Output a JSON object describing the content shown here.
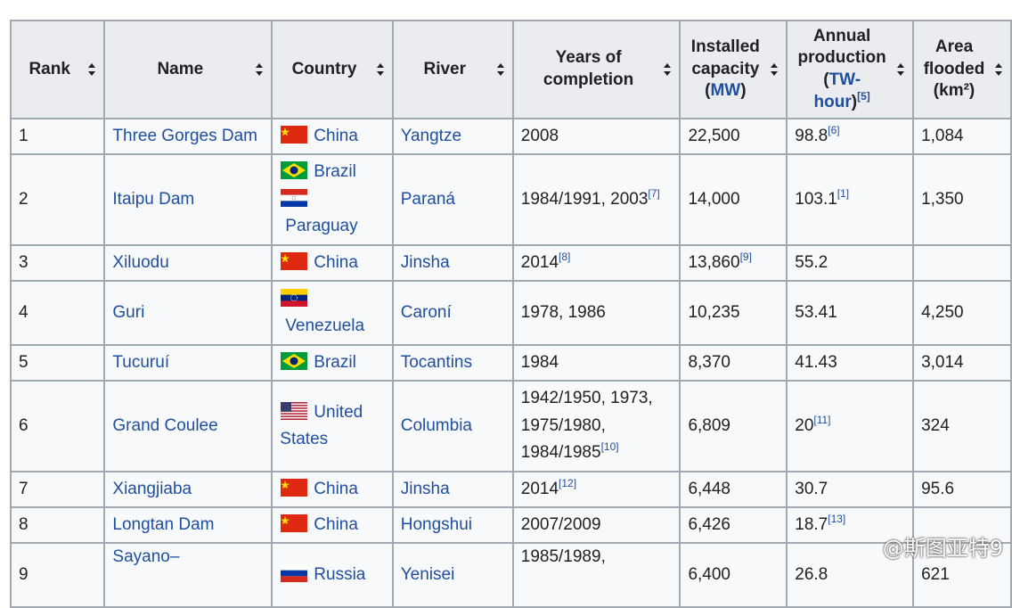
{
  "headers": {
    "rank": "Rank",
    "name": "Name",
    "country": "Country",
    "river": "River",
    "years_line1": "Years of",
    "years_line2": "completion",
    "capacity_line1": "Installed",
    "capacity_line2": "capacity",
    "capacity_unit": "MW",
    "production_line1": "Annual",
    "production_line2": "production",
    "production_unit_a": "TW-",
    "production_unit_b": "hour",
    "production_ref": "[5]",
    "area_line1": "Area",
    "area_line2": "flooded",
    "area_unit": "(km²)"
  },
  "rows": [
    {
      "rank": "1",
      "name": "Three Gorges Dam",
      "country1": "China",
      "river": "Yangtze",
      "years": "2008",
      "capacity": "22,500",
      "production": "98.8",
      "production_ref": "[6]",
      "area": "1,084"
    },
    {
      "rank": "2",
      "name": "Itaipu Dam",
      "country1": "Brazil",
      "country2": "Paraguay",
      "river": "Paraná",
      "years": "1984/1991, 2003",
      "years_ref": "[7]",
      "capacity": "14,000",
      "production": "103.1",
      "production_ref": "[1]",
      "area": "1,350"
    },
    {
      "rank": "3",
      "name": "Xiluodu",
      "country1": "China",
      "river": "Jinsha",
      "years": "2014",
      "years_ref": "[8]",
      "capacity": "13,860",
      "capacity_ref": "[9]",
      "production": "55.2",
      "area": ""
    },
    {
      "rank": "4",
      "name": "Guri",
      "country1": "Venezuela",
      "river": "Caroní",
      "years": "1978, 1986",
      "capacity": "10,235",
      "production": "53.41",
      "area": "4,250"
    },
    {
      "rank": "5",
      "name": "Tucuruí",
      "country1": "Brazil",
      "river": "Tocantins",
      "years": "1984",
      "capacity": "8,370",
      "production": "41.43",
      "area": "3,014"
    },
    {
      "rank": "6",
      "name": "Grand Coulee",
      "country1": "United",
      "country1b": "States",
      "river": "Columbia",
      "years_l1": "1942/1950, 1973,",
      "years_l2": "1975/1980,",
      "years_l3": "1984/1985",
      "years_ref": "[10]",
      "capacity": "6,809",
      "production": "20",
      "production_ref": "[11]",
      "area": "324"
    },
    {
      "rank": "7",
      "name": "Xiangjiaba",
      "country1": "China",
      "river": "Jinsha",
      "years": "2014",
      "years_ref": "[12]",
      "capacity": "6,448",
      "production": "30.7",
      "area": "95.6"
    },
    {
      "rank": "8",
      "name": "Longtan Dam",
      "country1": "China",
      "river": "Hongshui",
      "years": "2007/2009",
      "capacity": "6,426",
      "production": "18.7",
      "production_ref": "[13]",
      "area": ""
    },
    {
      "rank": "9",
      "name": "Sayano–",
      "country1": "Russia",
      "river": "Yenisei",
      "years": "1985/1989,",
      "capacity": "6,400",
      "production": "26.8",
      "area": "621"
    }
  ],
  "watermark": "@斯图亚特9",
  "colors": {
    "link": "#1f4f9e",
    "header_bg": "#eaecf0",
    "cell_bg": "#f8f9fa",
    "border": "#a2a9b1"
  }
}
